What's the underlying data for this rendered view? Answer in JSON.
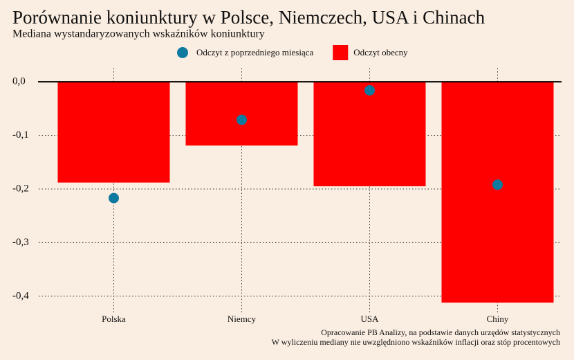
{
  "chart_data": {
    "type": "bar",
    "title": "Porównanie koniunktury w Polsce, Niemczech, USA i Chinach",
    "subtitle": "Mediana wystandaryzowanych wskaźników koniunktury",
    "categories": [
      "Polska",
      "Niemcy",
      "USA",
      "Chiny"
    ],
    "series": [
      {
        "name": "Odczyt z poprzedniego miesiąca",
        "type": "scatter",
        "color": "#0e7aa0",
        "values": [
          -0.217,
          -0.071,
          -0.016,
          -0.192
        ]
      },
      {
        "name": "Odczyt obecny",
        "type": "bar",
        "color": "#ff0000",
        "values": [
          -0.188,
          -0.119,
          -0.195,
          -0.412
        ]
      }
    ],
    "ylim": [
      -0.44,
      0.02
    ],
    "yticks": [
      {
        "value": 0,
        "label": "0,0"
      },
      {
        "value": -0.1,
        "label": "-0,1"
      },
      {
        "value": -0.2,
        "label": "-0,2"
      },
      {
        "value": -0.3,
        "label": "-0,3"
      },
      {
        "value": -0.4,
        "label": "-0,4"
      }
    ],
    "grid": true,
    "legend": "top",
    "notes": [
      "Opracowanie PB Analizy, na podstawie danych urzędów statystycznych",
      "W wyliczeniu mediany nie uwzględniono wskaźników inflacji oraz stóp procentowych"
    ]
  }
}
